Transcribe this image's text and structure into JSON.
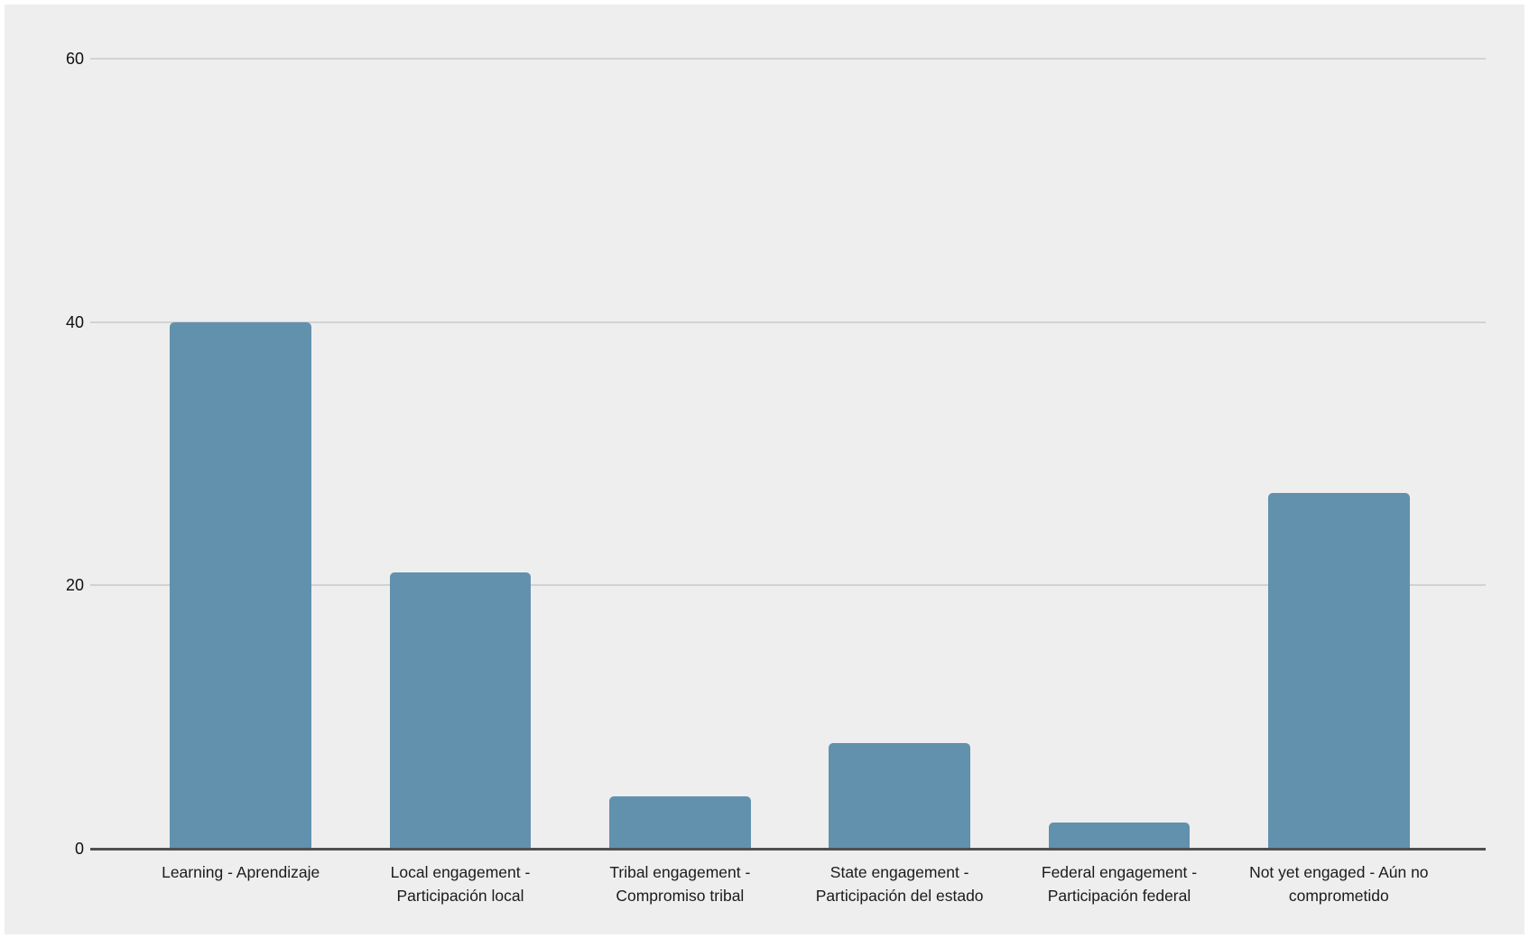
{
  "page": {
    "background_color": "#eeeeee",
    "frame_color": "#ffffff"
  },
  "chart_data": {
    "type": "bar",
    "categories": [
      "Learning - Aprendizaje",
      "Local engagement - Participación local",
      "Tribal engagement - Compromiso tribal",
      "State engagement - Participación del estado",
      "Federal engagement - Participación federal",
      "Not yet engaged - Aún no comprometido"
    ],
    "display_labels": [
      "Learning - Aprendizaje",
      "Local engagement -\nParticipación local",
      "Tribal engagement -\nCompromiso tribal",
      "State engagement -\nParticipación del estado",
      "Federal engagement -\nParticipación federal",
      "Not yet engaged - Aún no\ncomprometido"
    ],
    "values": [
      40,
      21,
      4,
      8,
      2,
      27
    ],
    "ylim": [
      0,
      60
    ],
    "yticks": [
      0,
      20,
      40,
      60
    ],
    "grid": true,
    "legend_position": "none",
    "bar_color": "#6291ad",
    "gridline_color": "#d2d2d2",
    "baseline_color": "#4f4f4f",
    "tick_text_color": "#101010",
    "label_text_color": "#1b1b1b"
  }
}
